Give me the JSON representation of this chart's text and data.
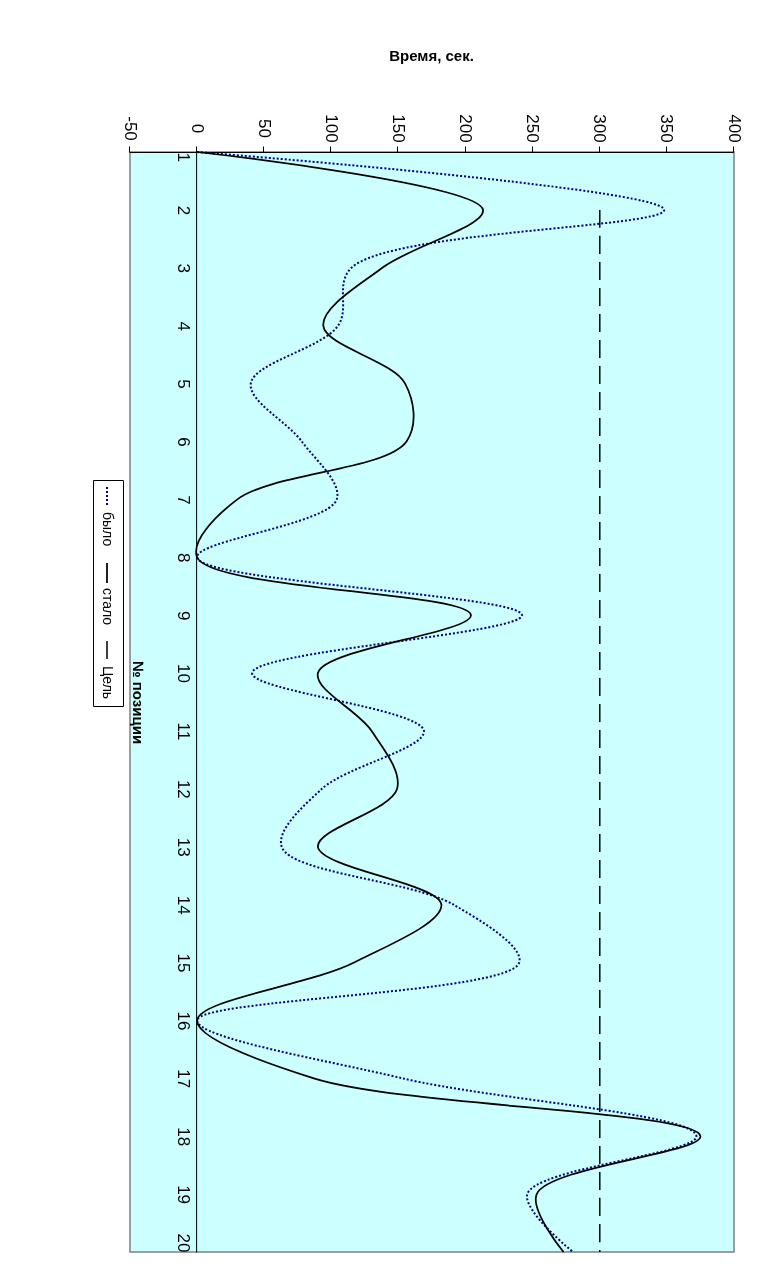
{
  "chart_data": {
    "type": "line",
    "orientation": "horizontal",
    "xlabel": "Время, сек.",
    "ylabel": "№ позиции",
    "categories": [
      "1",
      "2",
      "3",
      "4",
      "5",
      "6",
      "7",
      "8",
      "9",
      "10",
      "11",
      "12",
      "13",
      "14",
      "15",
      "16",
      "17",
      "18",
      "19",
      "20"
    ],
    "xlim": [
      -50,
      400
    ],
    "xticks": [
      -50,
      0,
      50,
      100,
      150,
      200,
      250,
      300,
      350,
      400
    ],
    "grid": false,
    "legend": "left",
    "series": [
      {
        "name": "было",
        "color": "#000080",
        "line_style": "dotted",
        "values": [
          0,
          348,
          115,
          105,
          40,
          78,
          104,
          0,
          242,
          41,
          169,
          93,
          63,
          191,
          240,
          0,
          153,
          372,
          246,
          280
        ]
      },
      {
        "name": "стало",
        "color": "#000000",
        "line_style": "solid",
        "values": [
          0,
          213,
          138,
          94,
          155,
          156,
          30,
          0,
          204,
          90,
          130,
          149,
          90,
          182,
          117,
          0,
          87,
          375,
          253,
          273
        ]
      },
      {
        "name": "Цель",
        "color": "#000000",
        "line_style": "dashed",
        "values": [
          null,
          300,
          300,
          300,
          300,
          300,
          300,
          300,
          300,
          300,
          300,
          300,
          300,
          300,
          300,
          300,
          300,
          300,
          300,
          300
        ]
      }
    ]
  }
}
